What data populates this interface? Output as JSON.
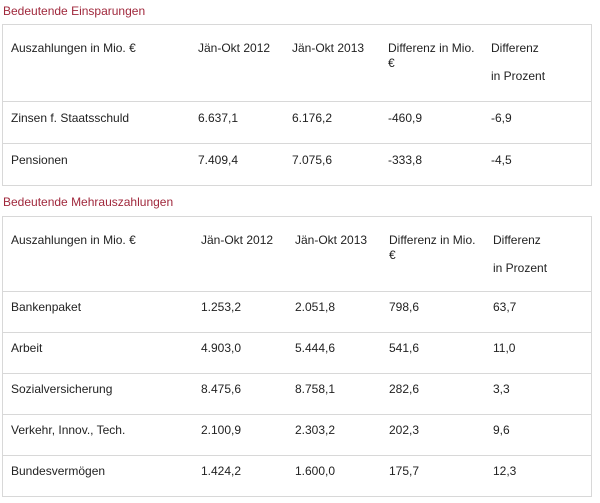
{
  "sections": [
    {
      "title": "Bedeutende Einsparungen",
      "header": {
        "label": "Auszahlungen in Mio. €",
        "year1": "Jän-Okt 2012",
        "year2": "Jän-Okt 2013",
        "diff_abs": "Differenz in Mio. €",
        "diff_pct_1": "Differenz",
        "diff_pct_2": "in Prozent"
      },
      "rows": [
        {
          "label": "Zinsen f. Staatsschuld",
          "v2012": "6.637,1",
          "v2013": "6.176,2",
          "diff": "-460,9",
          "pct": "-6,9"
        },
        {
          "label": "Pensionen",
          "v2012": "7.409,4",
          "v2013": "7.075,6",
          "diff": "-333,8",
          "pct": "-4,5"
        }
      ]
    },
    {
      "title": "Bedeutende Mehrauszahlungen",
      "header": {
        "label": "Auszahlungen in Mio. €",
        "year1": "Jän-Okt 2012",
        "year2": "Jän-Okt 2013",
        "diff_abs": "Differenz in Mio. €",
        "diff_pct_1": "Differenz",
        "diff_pct_2": "in Prozent"
      },
      "rows": [
        {
          "label": "Bankenpaket",
          "v2012": "1.253,2",
          "v2013": "2.051,8",
          "diff": "798,6",
          "pct": "63,7"
        },
        {
          "label": "Arbeit",
          "v2012": "4.903,0",
          "v2013": "5.444,6",
          "diff": "541,6",
          "pct": "11,0"
        },
        {
          "label": "Sozialversicherung",
          "v2012": "8.475,6",
          "v2013": "8.758,1",
          "diff": "282,6",
          "pct": "3,3"
        },
        {
          "label": "Verkehr, Innov., Tech.",
          "v2012": "2.100,9",
          "v2013": "2.303,2",
          "diff": "202,3",
          "pct": "9,6"
        },
        {
          "label": "Bundesvermögen",
          "v2012": "1.424,2",
          "v2013": "1.600,0",
          "diff": "175,7",
          "pct": "12,3"
        }
      ]
    }
  ]
}
